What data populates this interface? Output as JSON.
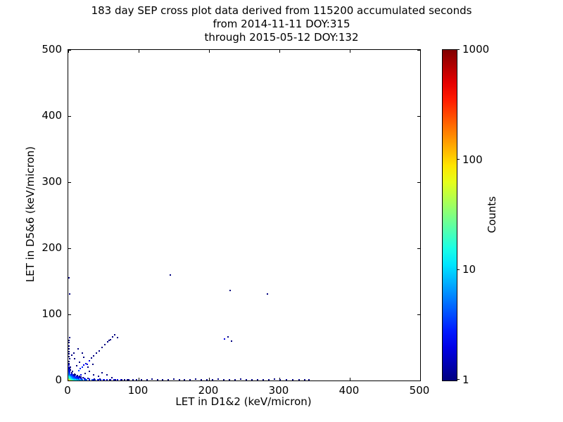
{
  "chart_data": {
    "type": "scatter",
    "title_lines": [
      "183 day SEP cross plot data derived from 115200 accumulated seconds",
      "from 2014-11-11 DOY:315",
      "through 2015-05-12 DOY:132"
    ],
    "xlabel": "LET in D1&2 (keV/micron)",
    "ylabel": "LET in D5&6 (keV/micron)",
    "xlim": [
      0,
      500
    ],
    "ylim": [
      0,
      500
    ],
    "x_ticks": [
      0,
      100,
      200,
      300,
      400,
      500
    ],
    "y_ticks": [
      0,
      100,
      200,
      300,
      400,
      500
    ],
    "grid": false,
    "background_color": "#ffffff",
    "axis_color": "#000000",
    "colorbar": {
      "label": "Counts",
      "scale": "log",
      "range": [
        1,
        1000
      ],
      "ticks": [
        1000,
        100,
        10,
        1
      ],
      "colormap": "jet",
      "colormap_stops": [
        "#000080",
        "#0000ff",
        "#00ffff",
        "#80ff80",
        "#ffff00",
        "#ff8000",
        "#ff0000",
        "#800000"
      ]
    },
    "points": [
      [
        0,
        0,
        300
      ],
      [
        1,
        0,
        190
      ],
      [
        2,
        0,
        120
      ],
      [
        3,
        0,
        85
      ],
      [
        4,
        0,
        65
      ],
      [
        5,
        0,
        50
      ],
      [
        6,
        0,
        40
      ],
      [
        7,
        0,
        33
      ],
      [
        8,
        0,
        27
      ],
      [
        9,
        0,
        22
      ],
      [
        10,
        0,
        18
      ],
      [
        12,
        0,
        14
      ],
      [
        14,
        0,
        11
      ],
      [
        16,
        0,
        9
      ],
      [
        18,
        0,
        8
      ],
      [
        20,
        0,
        7
      ],
      [
        23,
        0,
        6
      ],
      [
        26,
        0,
        5
      ],
      [
        30,
        0,
        5
      ],
      [
        34,
        0,
        4
      ],
      [
        38,
        0,
        4
      ],
      [
        42,
        0,
        3
      ],
      [
        46,
        0,
        3
      ],
      [
        50,
        0,
        3
      ],
      [
        55,
        0,
        2
      ],
      [
        60,
        0,
        2
      ],
      [
        65,
        0,
        2
      ],
      [
        70,
        0,
        2
      ],
      [
        75,
        0,
        2
      ],
      [
        80,
        0,
        1
      ],
      [
        86,
        0,
        1
      ],
      [
        92,
        0,
        1
      ],
      [
        97,
        0,
        1
      ],
      [
        0,
        1,
        150
      ],
      [
        1,
        1,
        100
      ],
      [
        2,
        1,
        65
      ],
      [
        3,
        1,
        45
      ],
      [
        4,
        1,
        33
      ],
      [
        6,
        1,
        24
      ],
      [
        8,
        1,
        17
      ],
      [
        10,
        1,
        12
      ],
      [
        13,
        1,
        9
      ],
      [
        16,
        1,
        7
      ],
      [
        20,
        1,
        5
      ],
      [
        25,
        1,
        4
      ],
      [
        30,
        1,
        3
      ],
      [
        36,
        1,
        2
      ],
      [
        43,
        1,
        2
      ],
      [
        51,
        1,
        2
      ],
      [
        59,
        1,
        1
      ],
      [
        67,
        1,
        1
      ],
      [
        76,
        1,
        1
      ],
      [
        84,
        1,
        1
      ],
      [
        0,
        2,
        85
      ],
      [
        1,
        2,
        55
      ],
      [
        2,
        2,
        36
      ],
      [
        3,
        2,
        25
      ],
      [
        5,
        2,
        16
      ],
      [
        7,
        2,
        11
      ],
      [
        9,
        2,
        8
      ],
      [
        12,
        2,
        6
      ],
      [
        15,
        2,
        4
      ],
      [
        19,
        2,
        3
      ],
      [
        24,
        2,
        2
      ],
      [
        30,
        2,
        2
      ],
      [
        37,
        2,
        1
      ],
      [
        45,
        2,
        1
      ],
      [
        0,
        3,
        55
      ],
      [
        1,
        3,
        36
      ],
      [
        2,
        3,
        23
      ],
      [
        4,
        3,
        14
      ],
      [
        6,
        3,
        9
      ],
      [
        8,
        3,
        6
      ],
      [
        11,
        3,
        4
      ],
      [
        14,
        3,
        3
      ],
      [
        18,
        3,
        2
      ],
      [
        23,
        3,
        2
      ],
      [
        28,
        3,
        1
      ],
      [
        0,
        4,
        38
      ],
      [
        1,
        4,
        25
      ],
      [
        2,
        4,
        15
      ],
      [
        4,
        4,
        9
      ],
      [
        6,
        4,
        6
      ],
      [
        9,
        4,
        4
      ],
      [
        12,
        4,
        3
      ],
      [
        16,
        4,
        2
      ],
      [
        21,
        4,
        1
      ],
      [
        0,
        5,
        27
      ],
      [
        1,
        5,
        18
      ],
      [
        3,
        5,
        11
      ],
      [
        5,
        5,
        7
      ],
      [
        7,
        5,
        4
      ],
      [
        10,
        5,
        3
      ],
      [
        14,
        5,
        2
      ],
      [
        18,
        5,
        1
      ],
      [
        0,
        6,
        20
      ],
      [
        1,
        6,
        13
      ],
      [
        3,
        6,
        8
      ],
      [
        5,
        6,
        5
      ],
      [
        8,
        6,
        3
      ],
      [
        12,
        6,
        2
      ],
      [
        16,
        6,
        1
      ],
      [
        0,
        7,
        15
      ],
      [
        1,
        7,
        10
      ],
      [
        3,
        7,
        6
      ],
      [
        6,
        7,
        3
      ],
      [
        9,
        7,
        2
      ],
      [
        13,
        7,
        1
      ],
      [
        0,
        8,
        11
      ],
      [
        1,
        8,
        7
      ],
      [
        3,
        8,
        4
      ],
      [
        6,
        8,
        3
      ],
      [
        10,
        8,
        1
      ],
      [
        0,
        9,
        8
      ],
      [
        2,
        9,
        5
      ],
      [
        4,
        9,
        3
      ],
      [
        8,
        9,
        1
      ],
      [
        0,
        10,
        6
      ],
      [
        2,
        10,
        4
      ],
      [
        5,
        10,
        2
      ],
      [
        9,
        10,
        1
      ],
      [
        0,
        12,
        5
      ],
      [
        2,
        12,
        3
      ],
      [
        5,
        12,
        1
      ],
      [
        0,
        14,
        4
      ],
      [
        2,
        14,
        2
      ],
      [
        6,
        14,
        1
      ],
      [
        0,
        16,
        3
      ],
      [
        3,
        16,
        1
      ],
      [
        0,
        18,
        2
      ],
      [
        2,
        18,
        1
      ],
      [
        0,
        20,
        2
      ],
      [
        3,
        20,
        1
      ],
      [
        0,
        23,
        2
      ],
      [
        1,
        26,
        1
      ],
      [
        0,
        29,
        1
      ],
      [
        2,
        33,
        1
      ],
      [
        0,
        36,
        1
      ],
      [
        1,
        40,
        1
      ],
      [
        0,
        44,
        1
      ],
      [
        1,
        48,
        1
      ],
      [
        0,
        52,
        1
      ],
      [
        1,
        57,
        1
      ],
      [
        0,
        61,
        1
      ],
      [
        2,
        65,
        1
      ],
      [
        15,
        15,
        4
      ],
      [
        17,
        18,
        3
      ],
      [
        20,
        20,
        3
      ],
      [
        22,
        23,
        2
      ],
      [
        25,
        26,
        2
      ],
      [
        27,
        24,
        2
      ],
      [
        30,
        30,
        2
      ],
      [
        33,
        34,
        1
      ],
      [
        36,
        37,
        1
      ],
      [
        40,
        41,
        1
      ],
      [
        44,
        45,
        1
      ],
      [
        48,
        50,
        1
      ],
      [
        52,
        54,
        1
      ],
      [
        56,
        58,
        1
      ],
      [
        60,
        62,
        1
      ],
      [
        63,
        66,
        1
      ],
      [
        66,
        69,
        1
      ],
      [
        70,
        65,
        1
      ],
      [
        58,
        61,
        1
      ],
      [
        18,
        8,
        2
      ],
      [
        24,
        11,
        1
      ],
      [
        30,
        14,
        1
      ],
      [
        36,
        9,
        1
      ],
      [
        43,
        6,
        1
      ],
      [
        12,
        22,
        1
      ],
      [
        16,
        28,
        1
      ],
      [
        9,
        33,
        1
      ],
      [
        22,
        35,
        1
      ],
      [
        28,
        20,
        1
      ],
      [
        35,
        25,
        1
      ],
      [
        8,
        42,
        1
      ],
      [
        14,
        48,
        1
      ],
      [
        5,
        38,
        1
      ],
      [
        48,
        12,
        1
      ],
      [
        55,
        8,
        1
      ],
      [
        62,
        4,
        1
      ],
      [
        20,
        42,
        1
      ],
      [
        104,
        1,
        1
      ],
      [
        112,
        0,
        1
      ],
      [
        119,
        2,
        1
      ],
      [
        127,
        1,
        1
      ],
      [
        134,
        0,
        1
      ],
      [
        142,
        1,
        1
      ],
      [
        150,
        2,
        1
      ],
      [
        158,
        0,
        1
      ],
      [
        165,
        1,
        1
      ],
      [
        173,
        0,
        1
      ],
      [
        181,
        2,
        1
      ],
      [
        189,
        1,
        1
      ],
      [
        197,
        0,
        1
      ],
      [
        205,
        1,
        1
      ],
      [
        213,
        2,
        1
      ],
      [
        221,
        0,
        1
      ],
      [
        229,
        1,
        1
      ],
      [
        237,
        0,
        1
      ],
      [
        245,
        2,
        1
      ],
      [
        253,
        1,
        1
      ],
      [
        261,
        0,
        1
      ],
      [
        269,
        1,
        1
      ],
      [
        277,
        0,
        1
      ],
      [
        285,
        1,
        1
      ],
      [
        293,
        2,
        1
      ],
      [
        301,
        0,
        1
      ],
      [
        310,
        1,
        1
      ],
      [
        319,
        0,
        1
      ],
      [
        328,
        1,
        1
      ],
      [
        336,
        0,
        1
      ],
      [
        342,
        1,
        1
      ],
      [
        145,
        160,
        1
      ],
      [
        230,
        136,
        1
      ],
      [
        283,
        131,
        1
      ],
      [
        222,
        63,
        2
      ],
      [
        227,
        66,
        1
      ],
      [
        1,
        155,
        1
      ],
      [
        2,
        131,
        1
      ],
      [
        232,
        60,
        1
      ]
    ]
  }
}
